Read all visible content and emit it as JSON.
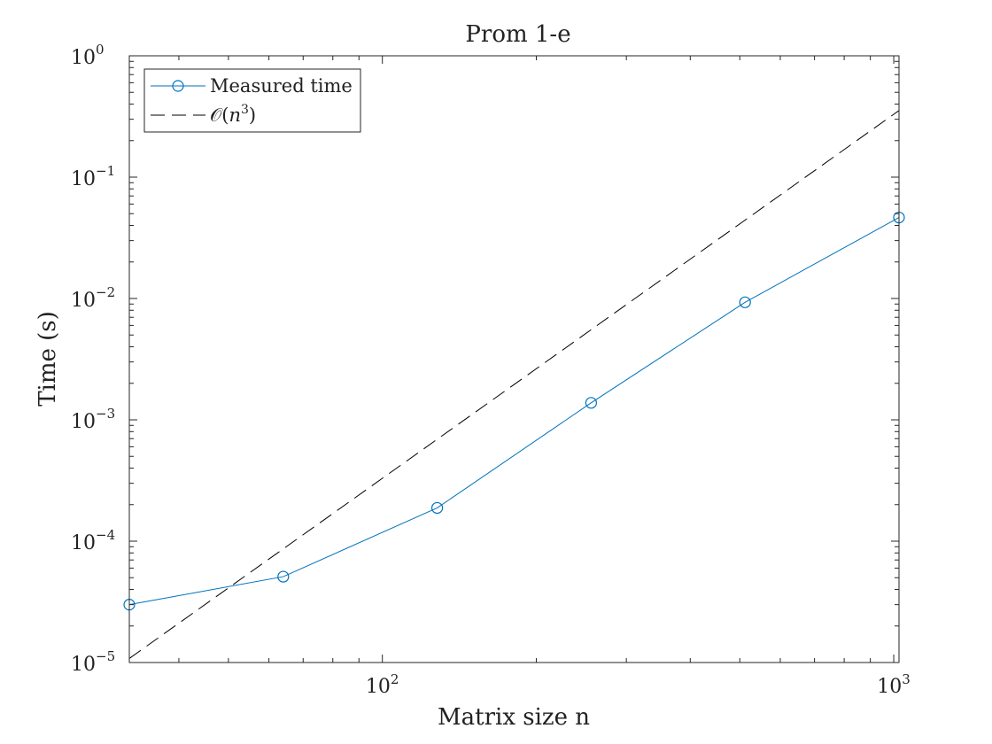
{
  "chart_data": {
    "type": "line",
    "title": "Prom 1-e",
    "xlabel": "Matrix size n",
    "ylabel": "Time (s)",
    "xscale": "log",
    "yscale": "log",
    "xlim": [
      32,
      1024
    ],
    "ylim": [
      1e-05,
      1
    ],
    "x_ticks": [
      {
        "base": "10",
        "exp": "2",
        "value": 100
      },
      {
        "base": "10",
        "exp": "3",
        "value": 1000
      }
    ],
    "y_ticks": [
      {
        "base": "10",
        "exp": "0",
        "value": 1
      },
      {
        "base": "10",
        "exp": "−1",
        "value": 0.1
      },
      {
        "base": "10",
        "exp": "−2",
        "value": 0.01
      },
      {
        "base": "10",
        "exp": "−3",
        "value": 0.001
      },
      {
        "base": "10",
        "exp": "−4",
        "value": 0.0001
      },
      {
        "base": "10",
        "exp": "−5",
        "value": 1e-05
      }
    ],
    "grid": false,
    "legend_position": "top-left",
    "series": [
      {
        "name": "Measured time",
        "style": "solid",
        "marker": "circle",
        "color": "#0072BD",
        "x": [
          32,
          64,
          128,
          256,
          512,
          1024
        ],
        "y": [
          3e-05,
          5.1e-05,
          0.000188,
          0.00138,
          0.0093,
          0.0465
        ]
      },
      {
        "name": "O(n^3)",
        "legend_parts": {
          "script_o": "𝒪",
          "open": "(",
          "var": "n",
          "exp": "3",
          "close": ")"
        },
        "style": "dashed",
        "marker": "none",
        "color": "#000000",
        "x": [
          32,
          1024
        ],
        "y": [
          1.08e-05,
          0.354
        ]
      }
    ]
  }
}
